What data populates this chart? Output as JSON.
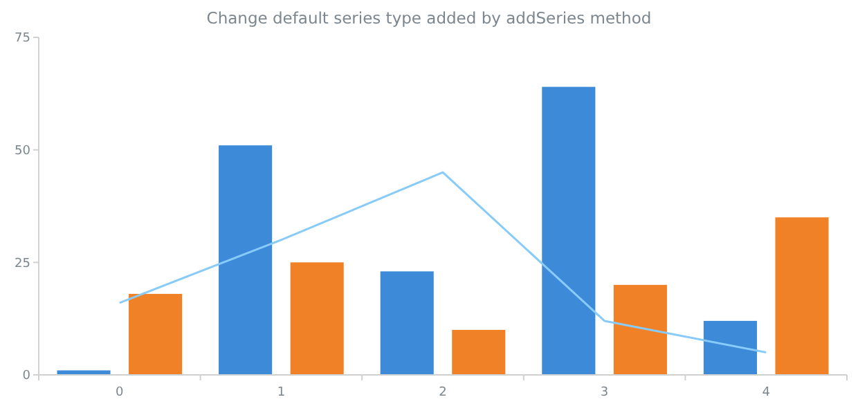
{
  "chart_data": {
    "type": "bar",
    "title": "Change default series type added by addSeries method",
    "categories": [
      "0",
      "1",
      "2",
      "3",
      "4"
    ],
    "ylim": [
      0,
      75
    ],
    "yticks": [
      0,
      25,
      50,
      75
    ],
    "grid": false,
    "series": [
      {
        "color": "#3c8ad8",
        "values": [
          1,
          51,
          23,
          64,
          12
        ]
      },
      {
        "color": "#f18126",
        "values": [
          18,
          25,
          10,
          20,
          35
        ]
      },
      {
        "type": "line",
        "color": "#88cbf9",
        "values": [
          16,
          30,
          45,
          12,
          5
        ]
      }
    ]
  }
}
